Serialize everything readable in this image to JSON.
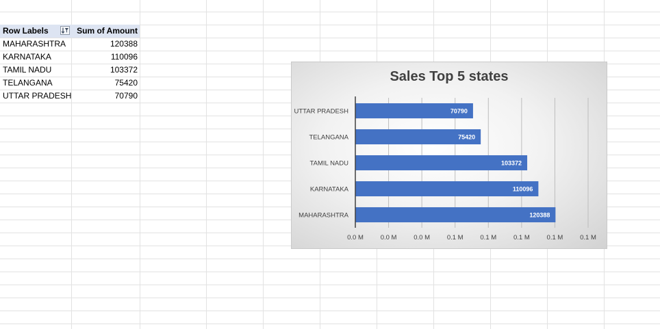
{
  "pivot": {
    "header": {
      "row_labels": "Row Labels",
      "sum_of_amount": "Sum of Amount"
    },
    "rows": [
      {
        "label": "MAHARASHTRA",
        "value": "120388"
      },
      {
        "label": "KARNATAKA",
        "value": "110096"
      },
      {
        "label": "TAMIL NADU",
        "value": "103372"
      },
      {
        "label": "TELANGANA",
        "value": "75420"
      },
      {
        "label": "UTTAR PRADESH",
        "value": "70790"
      }
    ]
  },
  "chart_data": {
    "type": "bar",
    "orientation": "horizontal",
    "title": "Sales Top 5 states",
    "categories": [
      "MAHARASHTRA",
      "KARNATAKA",
      "TAMIL NADU",
      "TELANGANA",
      "UTTAR PRADESH"
    ],
    "values": [
      120388,
      110096,
      103372,
      75420,
      70790
    ],
    "data_labels": [
      "120388",
      "110096",
      "103372",
      "75420",
      "70790"
    ],
    "x_tick_labels": [
      "0.0 M",
      "0.0 M",
      "0.0 M",
      "0.1 M",
      "0.1 M",
      "0.1 M",
      "0.1 M",
      "0.1 M"
    ],
    "xlim": [
      0,
      140000
    ],
    "x_major_unit": 20000,
    "grid": true,
    "legend": "none",
    "bar_color": "#4472c4"
  }
}
